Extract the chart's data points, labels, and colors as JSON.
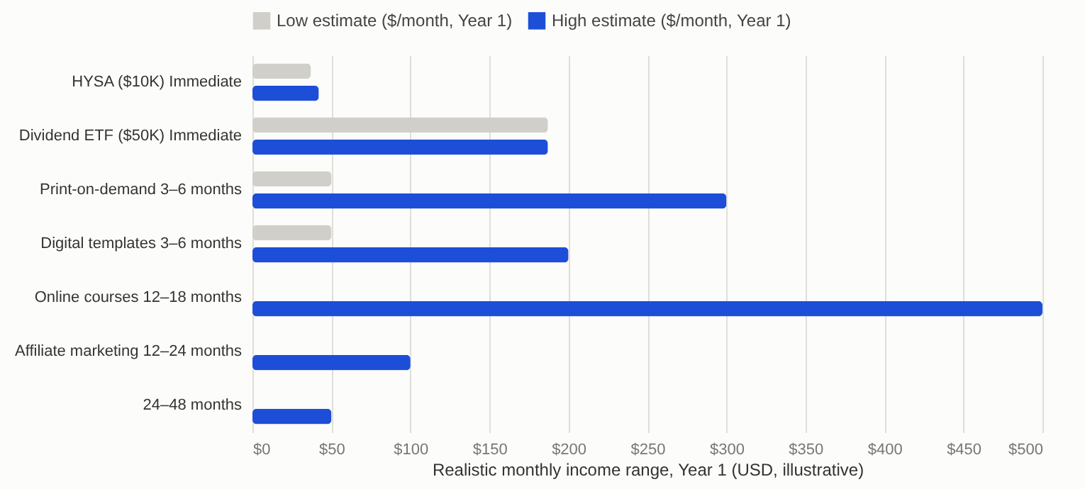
{
  "chart_data": {
    "type": "bar",
    "orientation": "horizontal",
    "categories": [
      "HYSA ($10K) Immediate",
      "Dividend ETF ($50K) Immediate",
      "Print-on-demand 3–6 months",
      "Digital templates 3–6 months",
      "Online courses 12–18 months",
      "Affiliate marketing 12–24 months",
      "24–48 months"
    ],
    "series": [
      {
        "name": "Low estimate ($/month, Year 1)",
        "color": "#d0cfc9",
        "values": [
          37,
          187,
          50,
          50,
          0,
          0,
          0
        ]
      },
      {
        "name": "High estimate ($/month, Year 1)",
        "color": "#1d4ed8",
        "values": [
          42,
          187,
          300,
          200,
          500,
          100,
          50
        ]
      }
    ],
    "xlabel": "Realistic monthly income range, Year 1 (USD, illustrative)",
    "xlim": [
      0,
      500
    ],
    "xticks": [
      {
        "value": 0,
        "label": "$0"
      },
      {
        "value": 50,
        "label": "$50"
      },
      {
        "value": 100,
        "label": "$100"
      },
      {
        "value": 150,
        "label": "$150"
      },
      {
        "value": 200,
        "label": "$200"
      },
      {
        "value": 250,
        "label": "$250"
      },
      {
        "value": 300,
        "label": "$300"
      },
      {
        "value": 350,
        "label": "$350"
      },
      {
        "value": 400,
        "label": "$400"
      },
      {
        "value": 450,
        "label": "$450"
      },
      {
        "value": 500,
        "label": "$500"
      }
    ],
    "grid": "x",
    "legend": "top"
  }
}
